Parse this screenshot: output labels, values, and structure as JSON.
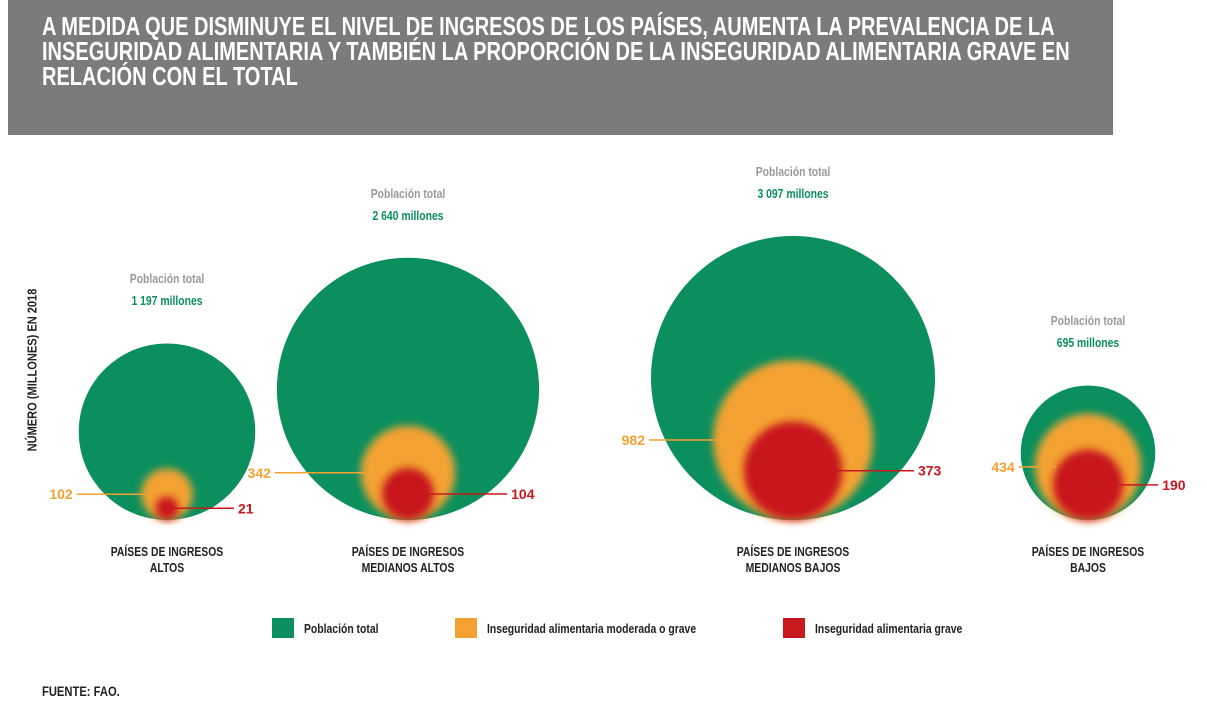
{
  "chart_data": {
    "type": "nested-bubble",
    "title": "A MEDIDA QUE DISMINUYE EL NIVEL DE INGRESOS DE LOS PAÍSES, AUMENTA LA PREVALENCIA DE LA INSEGURIDAD ALIMENTARIA Y TAMBIÉN LA PROPORCIÓN DE LA INSEGURIDAD ALIMENTARIA GRAVE EN RELACIÓN CON EL TOTAL",
    "y_label": "NÚMERO (MILLONES) EN 2018",
    "total_label": "Población total",
    "source": "FUENTE: FAO.",
    "categories": [
      "PAÍSES DE INGRESOS ALTOS",
      "PAÍSES DE INGRESOS MEDIANOS ALTOS",
      "PAÍSES DE INGRESOS MEDIANOS BAJOS",
      "PAÍSES DE INGRESOS BAJOS"
    ],
    "series": [
      {
        "name": "Población total",
        "color": "#0b8f5d",
        "values": [
          1197,
          2640,
          3097,
          695
        ],
        "value_labels": [
          "1 197 millones",
          "2 640 millones",
          "3 097 millones",
          "695 millones"
        ]
      },
      {
        "name": "Inseguridad alimentaria moderada o grave",
        "color": "#f3a232",
        "values": [
          102,
          342,
          982,
          434
        ]
      },
      {
        "name": "Inseguridad alimentaria grave",
        "color": "#c8191e",
        "values": [
          21,
          104,
          373,
          190
        ]
      }
    ]
  }
}
